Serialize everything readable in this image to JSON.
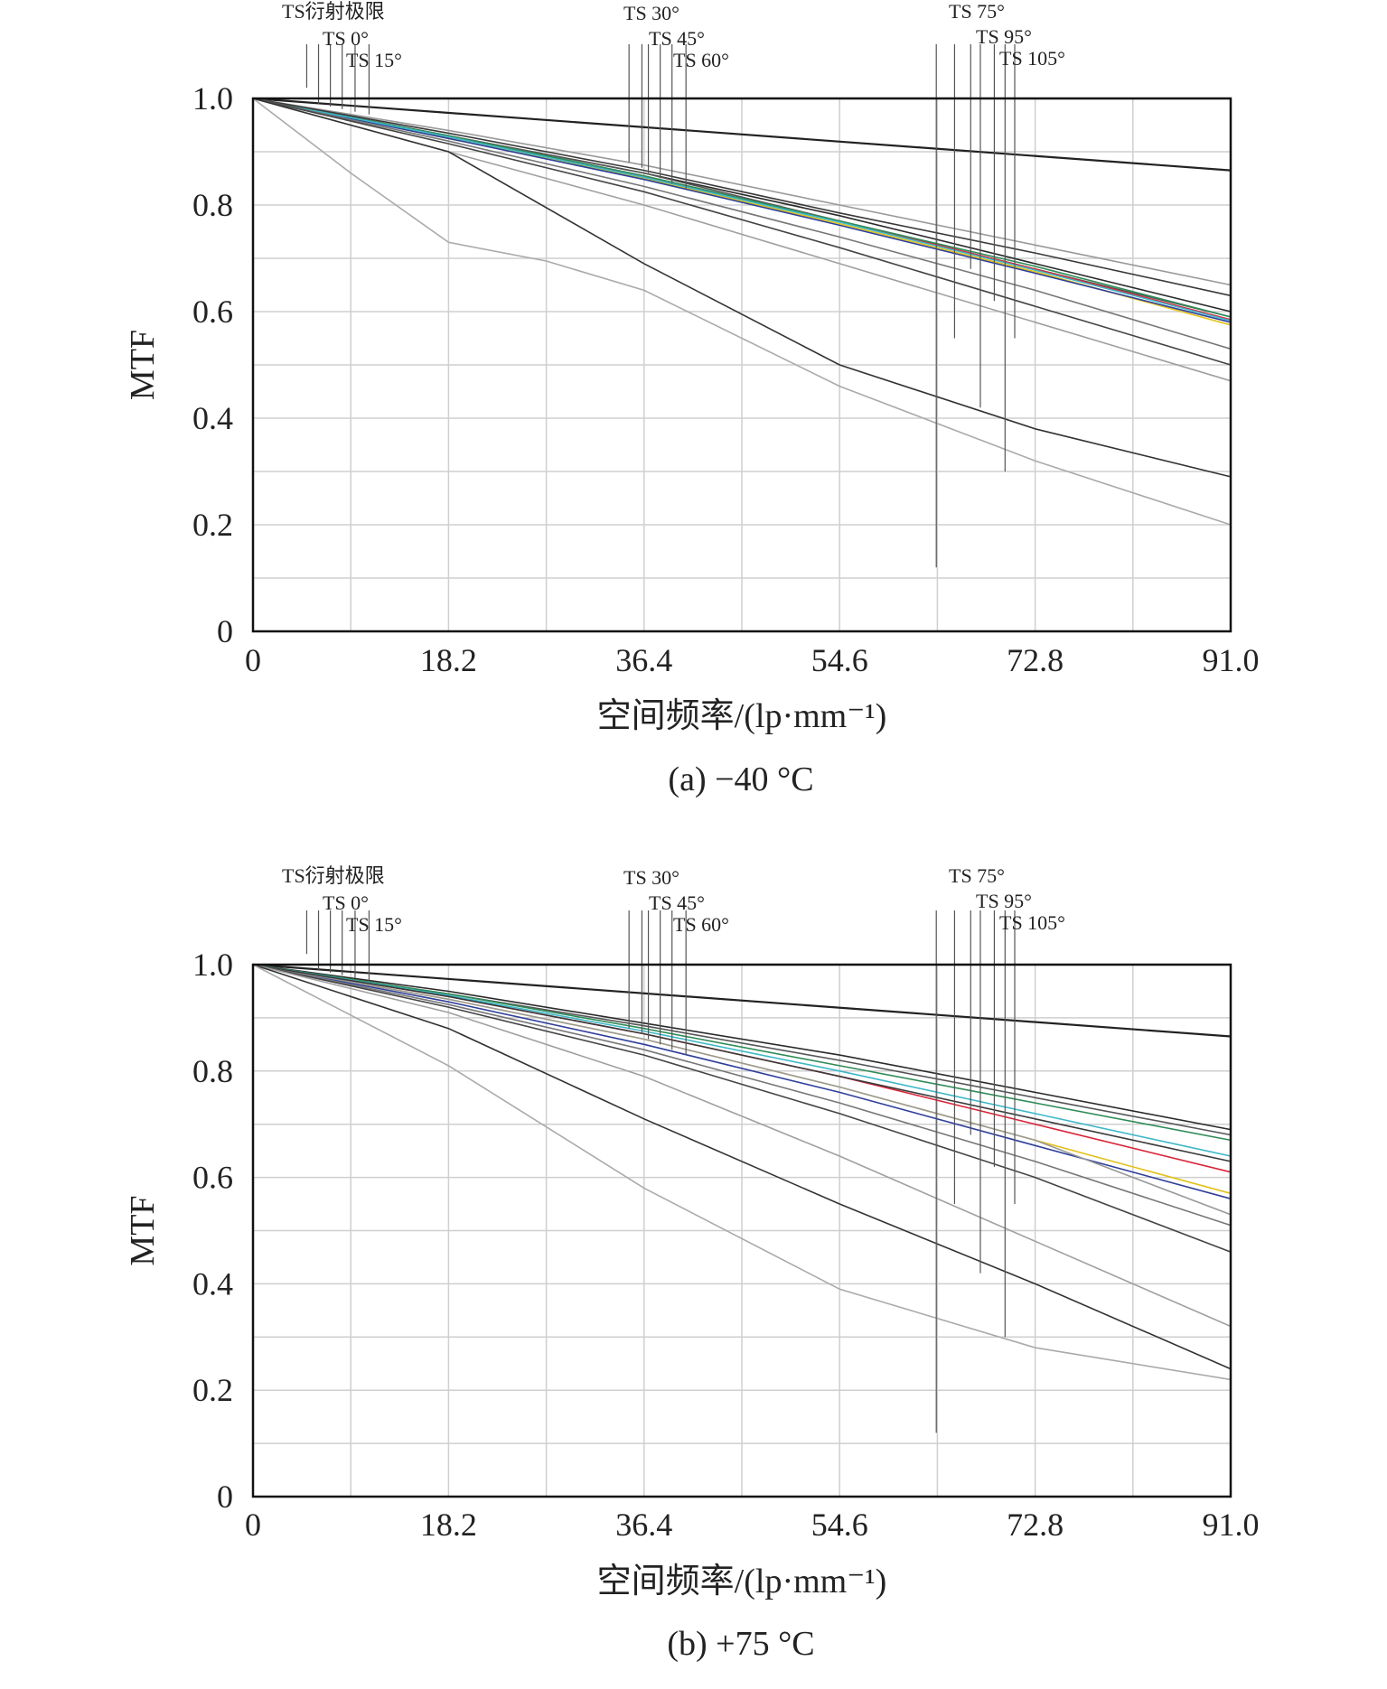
{
  "chart_data": [
    {
      "type": "line",
      "caption": "(a) −40 °C",
      "xlabel": "空间频率/(lp·mm⁻¹)",
      "ylabel": "MTF",
      "xlim": [
        0,
        91.0
      ],
      "ylim": [
        0,
        1.0
      ],
      "xticks": [
        "0",
        "18.2",
        "36.4",
        "54.6",
        "72.8",
        "91.0"
      ],
      "yticks": [
        "0",
        "0.2",
        "0.4",
        "0.6",
        "0.8",
        "1.0"
      ],
      "legend": [
        "TS衍射极限",
        "TS 0°",
        "TS 15°",
        "TS 30°",
        "TS 45°",
        "TS 60°",
        "TS 75°",
        "TS 95°",
        "TS 105°"
      ],
      "series": [
        {
          "name": "diffraction",
          "color": "#222222",
          "x": [
            0,
            91
          ],
          "y": [
            1.0,
            0.865
          ]
        },
        {
          "name": "s1",
          "color": "#2a2a2a",
          "x": [
            0,
            18.2,
            36.4,
            54.6,
            72.8,
            91
          ],
          "y": [
            1.0,
            0.93,
            0.86,
            0.78,
            0.69,
            0.6
          ]
        },
        {
          "name": "s2",
          "color": "#555555",
          "x": [
            0,
            18.2,
            36.4,
            54.6,
            72.8,
            91
          ],
          "y": [
            1.0,
            0.93,
            0.86,
            0.77,
            0.68,
            0.59
          ]
        },
        {
          "name": "s3",
          "color": "#d9263a",
          "x": [
            0,
            18.2,
            36.4,
            54.6,
            72.8,
            91
          ],
          "y": [
            1.0,
            0.928,
            0.853,
            0.77,
            0.68,
            0.585
          ]
        },
        {
          "name": "s4",
          "color": "#e2c21a",
          "x": [
            0,
            18.2,
            36.4,
            54.6,
            72.8,
            91
          ],
          "y": [
            1.0,
            0.925,
            0.85,
            0.765,
            0.675,
            0.575
          ]
        },
        {
          "name": "s5",
          "color": "#2e8b57",
          "x": [
            0,
            18.2,
            36.4,
            54.6,
            72.8,
            91
          ],
          "y": [
            1.0,
            0.93,
            0.855,
            0.77,
            0.685,
            0.59
          ]
        },
        {
          "name": "s6",
          "color": "#2f3f9a",
          "x": [
            0,
            18.2,
            36.4,
            54.6,
            72.8,
            91
          ],
          "y": [
            1.0,
            0.925,
            0.848,
            0.762,
            0.672,
            0.58
          ]
        },
        {
          "name": "s7",
          "color": "#3cb8c8",
          "x": [
            0,
            18.2,
            36.4,
            54.6,
            72.8,
            91
          ],
          "y": [
            1.0,
            0.928,
            0.852,
            0.768,
            0.678,
            0.583
          ]
        },
        {
          "name": "s8",
          "color": "#999999",
          "x": [
            0,
            18.2,
            36.4,
            54.6,
            72.8,
            91
          ],
          "y": [
            1.0,
            0.94,
            0.875,
            0.8,
            0.725,
            0.65
          ]
        },
        {
          "name": "s9",
          "color": "#3a3a3a",
          "x": [
            0,
            18.2,
            36.4,
            54.6,
            72.8,
            91
          ],
          "y": [
            1.0,
            0.935,
            0.865,
            0.785,
            0.71,
            0.63
          ]
        },
        {
          "name": "s10",
          "color": "#777777",
          "x": [
            0,
            18.2,
            36.4,
            54.6,
            72.8,
            91
          ],
          "y": [
            1.0,
            0.92,
            0.835,
            0.74,
            0.64,
            0.53
          ]
        },
        {
          "name": "s11",
          "color": "#444444",
          "x": [
            0,
            18.2,
            36.4,
            54.6,
            72.8,
            91
          ],
          "y": [
            1.0,
            0.915,
            0.825,
            0.72,
            0.61,
            0.5
          ]
        },
        {
          "name": "s12",
          "color": "#a0a0a0",
          "x": [
            0,
            18.2,
            36.4,
            54.6,
            72.8,
            91
          ],
          "y": [
            1.0,
            0.9,
            0.8,
            0.69,
            0.58,
            0.47
          ]
        },
        {
          "name": "s13",
          "color": "#333333",
          "x": [
            0,
            18.2,
            36.4,
            54.6,
            72.8,
            91
          ],
          "y": [
            1.0,
            0.9,
            0.69,
            0.5,
            0.38,
            0.29
          ]
        },
        {
          "name": "s14",
          "color": "#aaaaaa",
          "x": [
            0,
            9.1,
            18.2,
            27.3,
            36.4,
            54.6,
            72.8,
            91
          ],
          "y": [
            1.0,
            0.86,
            0.73,
            0.695,
            0.64,
            0.46,
            0.32,
            0.2
          ]
        }
      ]
    },
    {
      "type": "line",
      "caption": "(b) +75 °C",
      "xlabel": "空间频率/(lp·mm⁻¹)",
      "ylabel": "MTF",
      "xlim": [
        0,
        91.0
      ],
      "ylim": [
        0,
        1.0
      ],
      "xticks": [
        "0",
        "18.2",
        "36.4",
        "54.6",
        "72.8",
        "91.0"
      ],
      "yticks": [
        "0",
        "0.2",
        "0.4",
        "0.6",
        "0.8",
        "1.0"
      ],
      "legend": [
        "TS衍射极限",
        "TS 0°",
        "TS 15°",
        "TS 30°",
        "TS 45°",
        "TS 60°",
        "TS 75°",
        "TS 95°",
        "TS 105°"
      ],
      "series": [
        {
          "name": "diffraction",
          "color": "#222222",
          "x": [
            0,
            91
          ],
          "y": [
            1.0,
            0.865
          ]
        },
        {
          "name": "s1",
          "color": "#2a2a2a",
          "x": [
            0,
            18.2,
            36.4,
            54.6,
            72.8,
            91
          ],
          "y": [
            1.0,
            0.95,
            0.89,
            0.83,
            0.76,
            0.69
          ]
        },
        {
          "name": "s2",
          "color": "#555555",
          "x": [
            0,
            18.2,
            36.4,
            54.6,
            72.8,
            91
          ],
          "y": [
            1.0,
            0.945,
            0.885,
            0.82,
            0.75,
            0.68
          ]
        },
        {
          "name": "s3",
          "color": "#d9263a",
          "x": [
            0,
            18.2,
            36.4,
            54.6,
            72.8,
            91
          ],
          "y": [
            1.0,
            0.94,
            0.87,
            0.79,
            0.7,
            0.61
          ]
        },
        {
          "name": "s4",
          "color": "#e2c21a",
          "x": [
            0,
            18.2,
            36.4,
            54.6,
            72.8,
            91
          ],
          "y": [
            1.0,
            0.935,
            0.86,
            0.77,
            0.67,
            0.57
          ]
        },
        {
          "name": "s5",
          "color": "#2e8b57",
          "x": [
            0,
            18.2,
            36.4,
            54.6,
            72.8,
            91
          ],
          "y": [
            1.0,
            0.945,
            0.88,
            0.81,
            0.74,
            0.67
          ]
        },
        {
          "name": "s6",
          "color": "#2f3f9a",
          "x": [
            0,
            18.2,
            36.4,
            54.6,
            72.8,
            91
          ],
          "y": [
            1.0,
            0.93,
            0.85,
            0.76,
            0.66,
            0.56
          ]
        },
        {
          "name": "s7",
          "color": "#3cb8c8",
          "x": [
            0,
            18.2,
            36.4,
            54.6,
            72.8,
            91
          ],
          "y": [
            1.0,
            0.942,
            0.875,
            0.8,
            0.72,
            0.64
          ]
        },
        {
          "name": "s8",
          "color": "#999999",
          "x": [
            0,
            18.2,
            36.4,
            54.6,
            72.8,
            91
          ],
          "y": [
            1.0,
            0.935,
            0.86,
            0.77,
            0.67,
            0.53
          ]
        },
        {
          "name": "s9",
          "color": "#3a3a3a",
          "x": [
            0,
            18.2,
            36.4,
            54.6,
            72.8,
            91
          ],
          "y": [
            1.0,
            0.94,
            0.87,
            0.79,
            0.71,
            0.63
          ]
        },
        {
          "name": "s10",
          "color": "#777777",
          "x": [
            0,
            18.2,
            36.4,
            54.6,
            72.8,
            91
          ],
          "y": [
            1.0,
            0.925,
            0.84,
            0.74,
            0.63,
            0.51
          ]
        },
        {
          "name": "s11",
          "color": "#444444",
          "x": [
            0,
            18.2,
            36.4,
            54.6,
            72.8,
            91
          ],
          "y": [
            1.0,
            0.92,
            0.83,
            0.72,
            0.6,
            0.46
          ]
        },
        {
          "name": "s12",
          "color": "#a0a0a0",
          "x": [
            0,
            18.2,
            36.4,
            54.6,
            72.8,
            91
          ],
          "y": [
            1.0,
            0.91,
            0.79,
            0.64,
            0.48,
            0.32
          ]
        },
        {
          "name": "s13",
          "color": "#333333",
          "x": [
            0,
            18.2,
            36.4,
            54.6,
            72.8,
            91
          ],
          "y": [
            1.0,
            0.88,
            0.71,
            0.55,
            0.4,
            0.24
          ]
        },
        {
          "name": "s14",
          "color": "#aaaaaa",
          "x": [
            0,
            18.2,
            36.4,
            54.6,
            72.8,
            91
          ],
          "y": [
            1.0,
            0.81,
            0.58,
            0.39,
            0.28,
            0.22
          ]
        }
      ]
    }
  ]
}
